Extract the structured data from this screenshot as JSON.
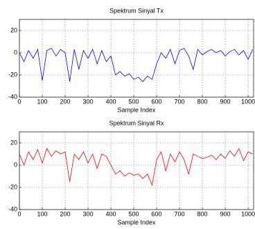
{
  "chart_data": [
    {
      "type": "line",
      "title": "Spektrum Sinyal Tx",
      "x_label": "Sample Index",
      "x": [
        0,
        20,
        40,
        60,
        80,
        100,
        120,
        140,
        160,
        180,
        200,
        220,
        240,
        260,
        280,
        300,
        320,
        340,
        360,
        380,
        400,
        420,
        440,
        460,
        480,
        500,
        520,
        540,
        560,
        580,
        600,
        620,
        640,
        660,
        680,
        700,
        720,
        740,
        760,
        780,
        800,
        820,
        840,
        860,
        880,
        900,
        920,
        940,
        960,
        980,
        1000,
        1020
      ],
      "series": [
        {
          "color": "#0000ff",
          "values": [
            0,
            -8,
            2,
            -5,
            3,
            -25,
            2,
            4,
            -3,
            3,
            0,
            -26,
            3,
            -15,
            2,
            -5,
            3,
            -10,
            2,
            -8,
            -3,
            -20,
            -17,
            -21,
            -19,
            -24,
            -22,
            -26,
            -21,
            -24,
            -10,
            0,
            -5,
            3,
            -10,
            2,
            4,
            -3,
            -15,
            3,
            -2,
            1,
            3,
            0,
            2,
            -3,
            1,
            3,
            -2,
            2,
            -6,
            3
          ]
        }
      ],
      "xlim": [
        0,
        1024
      ],
      "ylim": [
        -40,
        30
      ],
      "xticks": [
        0,
        100,
        200,
        300,
        400,
        500,
        600,
        700,
        800,
        900,
        1000
      ],
      "yticks": [
        -40,
        -20,
        0,
        20
      ],
      "grid": true
    },
    {
      "type": "line",
      "title": "Spektrum Sinyal Rx",
      "x_label": "Sample Index",
      "x": [
        0,
        20,
        40,
        60,
        80,
        100,
        120,
        140,
        160,
        180,
        200,
        220,
        240,
        260,
        280,
        300,
        320,
        340,
        360,
        380,
        400,
        420,
        440,
        460,
        480,
        500,
        520,
        540,
        560,
        580,
        600,
        620,
        640,
        660,
        680,
        700,
        720,
        740,
        760,
        780,
        800,
        820,
        840,
        860,
        880,
        900,
        920,
        940,
        960,
        980,
        1000,
        1020
      ],
      "series": [
        {
          "color": "#ff0000",
          "values": [
            10,
            0,
            12,
            5,
            14,
            2,
            15,
            8,
            13,
            10,
            12,
            -15,
            10,
            5,
            12,
            2,
            10,
            -3,
            10,
            8,
            0,
            -8,
            -5,
            -10,
            -7,
            -9,
            -8,
            -12,
            -8,
            -18,
            5,
            12,
            -5,
            10,
            3,
            12,
            5,
            -8,
            10,
            8,
            6,
            7,
            9,
            5,
            10,
            6,
            13,
            8,
            15,
            4,
            12,
            10
          ]
        }
      ],
      "xlim": [
        0,
        1024
      ],
      "ylim": [
        -40,
        30
      ],
      "xticks": [
        0,
        100,
        200,
        300,
        400,
        500,
        600,
        700,
        800,
        900,
        1000
      ],
      "yticks": [
        -40,
        -20,
        0,
        20
      ],
      "grid": true
    }
  ]
}
